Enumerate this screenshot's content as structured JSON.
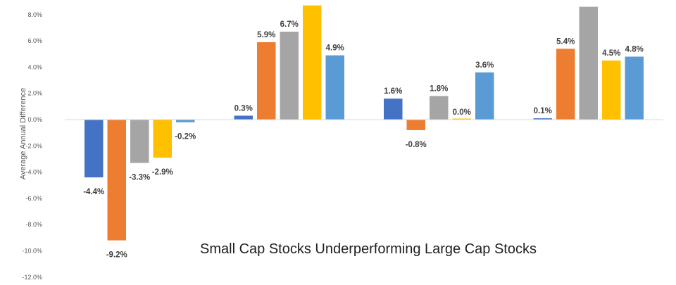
{
  "chart_data": {
    "type": "bar",
    "title": "Small Cap Stocks Underperforming Large Cap Stocks",
    "xlabel": "",
    "ylabel": "Average Annual Difference",
    "ylim": [
      -12,
      9.6
    ],
    "yticks": [
      "8.0%",
      "6.0%",
      "4.0%",
      "2.0%",
      "0.0%",
      "-2.0%",
      "-4.0%",
      "-6.0%",
      "-8.0%",
      "-10.0%",
      "-12.0%"
    ],
    "ytick_values": [
      8,
      6,
      4,
      2,
      0,
      -2,
      -4,
      -6,
      -8,
      -10,
      -12
    ],
    "grid": false,
    "legend": "none",
    "categories": [
      "",
      "",
      "",
      ""
    ],
    "series": [
      {
        "color": "#4472c4",
        "values": [
          -4.4,
          0.3,
          1.6,
          0.1
        ],
        "labels": [
          "-4.4%",
          "0.3%",
          "1.6%",
          "0.1%"
        ]
      },
      {
        "color": "#ed7d31",
        "values": [
          -9.2,
          5.9,
          -0.8,
          5.4
        ],
        "labels": [
          "-9.2%",
          "5.9%",
          "-0.8%",
          "5.4%"
        ]
      },
      {
        "color": "#a5a5a5",
        "values": [
          -3.3,
          6.7,
          1.8,
          8.6
        ],
        "labels": [
          "-3.3%",
          "6.7%",
          "1.8%",
          ""
        ]
      },
      {
        "color": "#ffc000",
        "values": [
          -2.9,
          8.7,
          0.0,
          4.5
        ],
        "labels": [
          "-2.9%",
          "",
          "0.0%",
          "4.5%"
        ]
      },
      {
        "color": "#5b9bd5",
        "values": [
          -0.2,
          4.9,
          3.6,
          4.8
        ],
        "labels": [
          "-0.2%",
          "4.9%",
          "3.6%",
          "4.8%"
        ]
      }
    ]
  }
}
